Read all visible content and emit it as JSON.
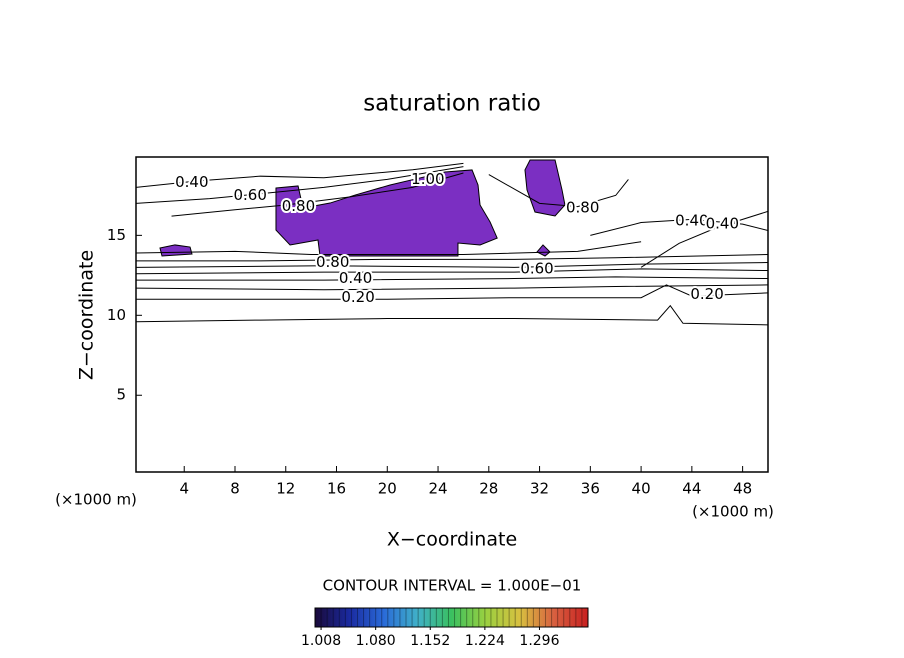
{
  "chart_data": {
    "type": "contour",
    "title": "saturation ratio",
    "x_label": "X−coordinate",
    "y_label": "Z−coordinate",
    "x_unit": "(×1000 m)",
    "y_unit": "(×1000 m)",
    "xlim": [
      0.2,
      50
    ],
    "xticks": [
      4,
      8,
      12,
      16,
      20,
      24,
      28,
      32,
      36,
      40,
      44,
      48
    ],
    "ylim": [
      0.2,
      19.9
    ],
    "yticks": [
      5,
      10,
      15
    ],
    "line_color": "#000000",
    "contour_lines": [
      {
        "level": 0.1,
        "x": [
          0.2,
          10,
          20,
          30,
          41.3,
          42.3,
          43.3,
          50
        ],
        "y": [
          9.6,
          9.7,
          9.8,
          9.8,
          9.7,
          10.6,
          9.5,
          9.4
        ]
      },
      {
        "level": 0.2,
        "x": [
          0.2,
          10,
          20,
          30,
          40,
          42,
          44,
          50
        ],
        "y": [
          11.0,
          11.0,
          11.0,
          11.1,
          11.1,
          11.9,
          11.2,
          11.4
        ]
      },
      {
        "level": 0.3,
        "x": [
          0.2,
          15,
          30,
          38,
          50
        ],
        "y": [
          11.7,
          11.6,
          11.7,
          11.8,
          11.9
        ]
      },
      {
        "level": 0.4,
        "x": [
          0.2,
          15,
          30,
          38,
          50
        ],
        "y": [
          12.2,
          12.2,
          12.3,
          12.4,
          12.3
        ]
      },
      {
        "level": 0.5,
        "x": [
          0.2,
          15,
          30,
          40,
          50
        ],
        "y": [
          12.6,
          12.7,
          12.7,
          12.9,
          12.8
        ]
      },
      {
        "level": 0.6,
        "x": [
          0.2,
          15,
          30,
          40,
          50
        ],
        "y": [
          13.0,
          13.1,
          13.0,
          13.2,
          13.3
        ]
      },
      {
        "level": 0.7,
        "x": [
          0.2,
          10,
          20,
          30,
          38,
          50
        ],
        "y": [
          13.4,
          13.4,
          13.5,
          13.5,
          13.6,
          13.8
        ]
      },
      {
        "level": 0.8,
        "x": [
          0.2,
          8,
          14,
          26,
          35,
          40
        ],
        "y": [
          13.9,
          14.0,
          13.8,
          13.8,
          14.0,
          14.6
        ]
      },
      {
        "level": 0.4,
        "x": [
          0.2,
          5,
          10,
          15,
          22,
          26
        ],
        "y": [
          18.0,
          18.4,
          18.7,
          18.6,
          19.1,
          19.5
        ]
      },
      {
        "level": 0.6,
        "x": [
          0.2,
          6,
          10,
          15,
          20,
          26
        ],
        "y": [
          17.0,
          17.3,
          17.6,
          18.0,
          18.5,
          19.3
        ]
      },
      {
        "level": 0.8,
        "x": [
          3,
          8,
          12,
          17,
          22,
          26
        ],
        "y": [
          16.2,
          16.6,
          16.9,
          17.4,
          18.0,
          18.9
        ]
      },
      {
        "level": 0.4,
        "x": [
          36,
          40,
          44,
          48,
          50
        ],
        "y": [
          15.0,
          15.8,
          16.0,
          15.7,
          15.3
        ]
      },
      {
        "level": 0.8,
        "x": [
          28,
          32,
          35,
          38,
          39
        ],
        "y": [
          18.8,
          17.0,
          16.8,
          17.5,
          18.5
        ]
      },
      {
        "level": 0.2,
        "x": [
          40,
          43,
          46,
          50
        ],
        "y": [
          13.0,
          14.5,
          15.5,
          16.5
        ]
      }
    ],
    "regions": [
      {
        "level": 1.0,
        "color": "#7b2fc2",
        "x": [
          11.23,
          12.97,
          13.36,
          15.49,
          17.46,
          20.22,
          22.58,
          24.55,
          26.68,
          27.15,
          27.31,
          28.1,
          28.66,
          27.31,
          25.57,
          25.57,
          14.7,
          14.54,
          12.34,
          11.23
        ],
        "y": [
          17.96,
          18.09,
          16.71,
          17.02,
          17.52,
          18.15,
          18.59,
          18.96,
          19.09,
          18.15,
          16.9,
          15.84,
          14.83,
          14.4,
          14.52,
          13.71,
          13.71,
          14.71,
          14.4,
          15.33
        ]
      },
      {
        "level": 1.0,
        "color": "#7b2fc2",
        "x": [
          31.25,
          33.22,
          33.77,
          34.0,
          33.22,
          31.64,
          31.01,
          30.85
        ],
        "y": [
          19.71,
          19.71,
          17.84,
          16.9,
          16.21,
          16.46,
          17.84,
          19.09
        ]
      },
      {
        "level": 1.0,
        "color": "#7b2fc2",
        "x": [
          2.09,
          3.27,
          4.46,
          4.61,
          2.25
        ],
        "y": [
          14.21,
          14.4,
          14.27,
          13.83,
          13.71
        ]
      },
      {
        "level": 1.0,
        "color": "#7b2fc2",
        "x": [
          31.8,
          32.27,
          32.82,
          32.43
        ],
        "y": [
          13.96,
          14.4,
          13.96,
          13.71
        ]
      }
    ],
    "contour_labels": [
      {
        "value": 0.2,
        "label": "0.20",
        "x": 17.7,
        "y": 11.1
      },
      {
        "value": 0.2,
        "label": "0.20",
        "x": 45.2,
        "y": 11.3
      },
      {
        "value": 0.4,
        "label": "0.40",
        "x": 17.5,
        "y": 12.3
      },
      {
        "value": 0.6,
        "label": "0.60",
        "x": 31.8,
        "y": 12.9
      },
      {
        "value": 0.8,
        "label": "0.80",
        "x": 15.7,
        "y": 13.3
      },
      {
        "value": 0.4,
        "label": "0.40",
        "x": 4.6,
        "y": 18.3
      },
      {
        "value": 0.6,
        "label": "0.60",
        "x": 9.2,
        "y": 17.5
      },
      {
        "value": 0.8,
        "label": "0.80",
        "x": 13.0,
        "y": 16.8
      },
      {
        "value": 1.0,
        "label": "1.00",
        "x": 23.2,
        "y": 18.5
      },
      {
        "value": 0.8,
        "label": "0.80",
        "x": 35.4,
        "y": 16.7
      },
      {
        "value": 0.4,
        "label": "0.40",
        "x": 44.0,
        "y": 15.9
      },
      {
        "value": 0.4,
        "label": "0.40",
        "x": 46.4,
        "y": 15.7
      }
    ],
    "contour_interval_text": "CONTOUR INTERVAL = 1.000E−01",
    "colorbar": {
      "lim": [
        1.0,
        1.36
      ],
      "colors": [
        "#1a0a3a",
        "#1a2aa0",
        "#2a6ad8",
        "#40b0c8",
        "#3ac060",
        "#9ad040",
        "#d8c040",
        "#d86040",
        "#c82020"
      ],
      "ticks": [
        1.008,
        {
          "value": 1.08,
          "label": "1.080"
        },
        1.152,
        1.224,
        1.296
      ]
    }
  }
}
